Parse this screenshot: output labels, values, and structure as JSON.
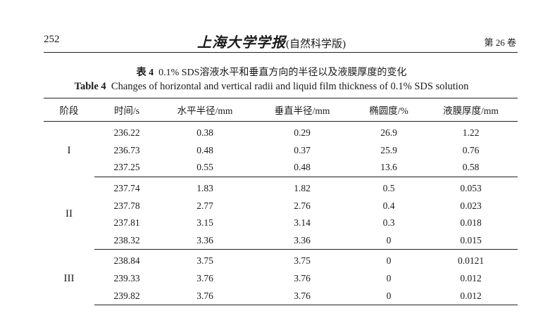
{
  "header": {
    "page_number": "252",
    "journal_logo": "上海大学学报",
    "journal_edition": "(自然科学版)",
    "volume": "第 26 卷"
  },
  "caption": {
    "cn_label": "表 4",
    "cn_text": "0.1% SDS溶液水平和垂直方向的半径以及液膜厚度的变化",
    "en_label": "Table 4",
    "en_text": "Changes of horizontal and vertical radii and liquid film thickness of 0.1% SDS solution"
  },
  "table": {
    "columns": [
      "阶段",
      "时间/s",
      "水平半径/mm",
      "垂直半径/mm",
      "椭圆度/%",
      "液膜厚度/mm"
    ],
    "groups": [
      {
        "stage": "I",
        "rows": [
          [
            "236.22",
            "0.38",
            "0.29",
            "26.9",
            "1.22"
          ],
          [
            "236.73",
            "0.48",
            "0.37",
            "25.9",
            "0.76"
          ],
          [
            "237.25",
            "0.55",
            "0.48",
            "13.6",
            "0.58"
          ]
        ]
      },
      {
        "stage": "II",
        "rows": [
          [
            "237.74",
            "1.83",
            "1.82",
            "0.5",
            "0.053"
          ],
          [
            "237.78",
            "2.77",
            "2.76",
            "0.4",
            "0.023"
          ],
          [
            "237.81",
            "3.15",
            "3.14",
            "0.3",
            "0.018"
          ],
          [
            "238.32",
            "3.36",
            "3.36",
            "0",
            "0.015"
          ]
        ]
      },
      {
        "stage": "III",
        "rows": [
          [
            "238.84",
            "3.75",
            "3.75",
            "0",
            "0.0121"
          ],
          [
            "239.33",
            "3.76",
            "3.76",
            "0",
            "0.012"
          ],
          [
            "239.82",
            "3.76",
            "3.76",
            "0",
            "0.012"
          ]
        ]
      }
    ]
  }
}
